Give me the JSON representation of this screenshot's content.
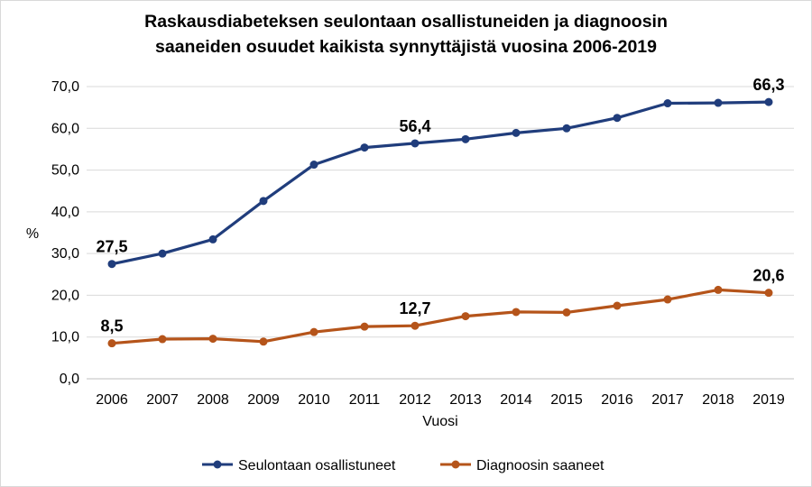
{
  "chart_data": {
    "type": "line",
    "title_line1": "Raskausdiabeteksen seulontaan osallistuneiden ja diagnoosin",
    "title_line2": "saaneiden osuudet kaikista synnyttäjistä vuosina 2006-2019",
    "xlabel": "Vuosi",
    "ylabel": "%",
    "ylim": [
      0,
      70
    ],
    "yticks": [
      "0,0",
      "10,0",
      "20,0",
      "30,0",
      "40,0",
      "50,0",
      "60,0",
      "70,0"
    ],
    "grid": true,
    "legend_position": "bottom",
    "categories": [
      "2006",
      "2007",
      "2008",
      "2009",
      "2010",
      "2011",
      "2012",
      "2013",
      "2014",
      "2015",
      "2016",
      "2017",
      "2018",
      "2019"
    ],
    "series": [
      {
        "name": "Seulontaan osallistuneet",
        "color": "#203d7c",
        "values": [
          27.5,
          30.0,
          33.4,
          42.6,
          51.3,
          55.4,
          56.4,
          57.4,
          58.9,
          60.0,
          62.5,
          66.0,
          66.1,
          66.3
        ],
        "labels": [
          {
            "index": 0,
            "text": "27,5"
          },
          {
            "index": 6,
            "text": "56,4"
          },
          {
            "index": 13,
            "text": "66,3"
          }
        ]
      },
      {
        "name": "Diagnoosin saaneet",
        "color": "#b5541a",
        "values": [
          8.5,
          9.5,
          9.6,
          8.9,
          11.2,
          12.5,
          12.7,
          15.0,
          16.0,
          15.9,
          17.5,
          19.0,
          21.3,
          20.6
        ],
        "labels": [
          {
            "index": 0,
            "text": "8,5"
          },
          {
            "index": 6,
            "text": "12,7"
          },
          {
            "index": 13,
            "text": "20,6"
          }
        ]
      }
    ]
  }
}
